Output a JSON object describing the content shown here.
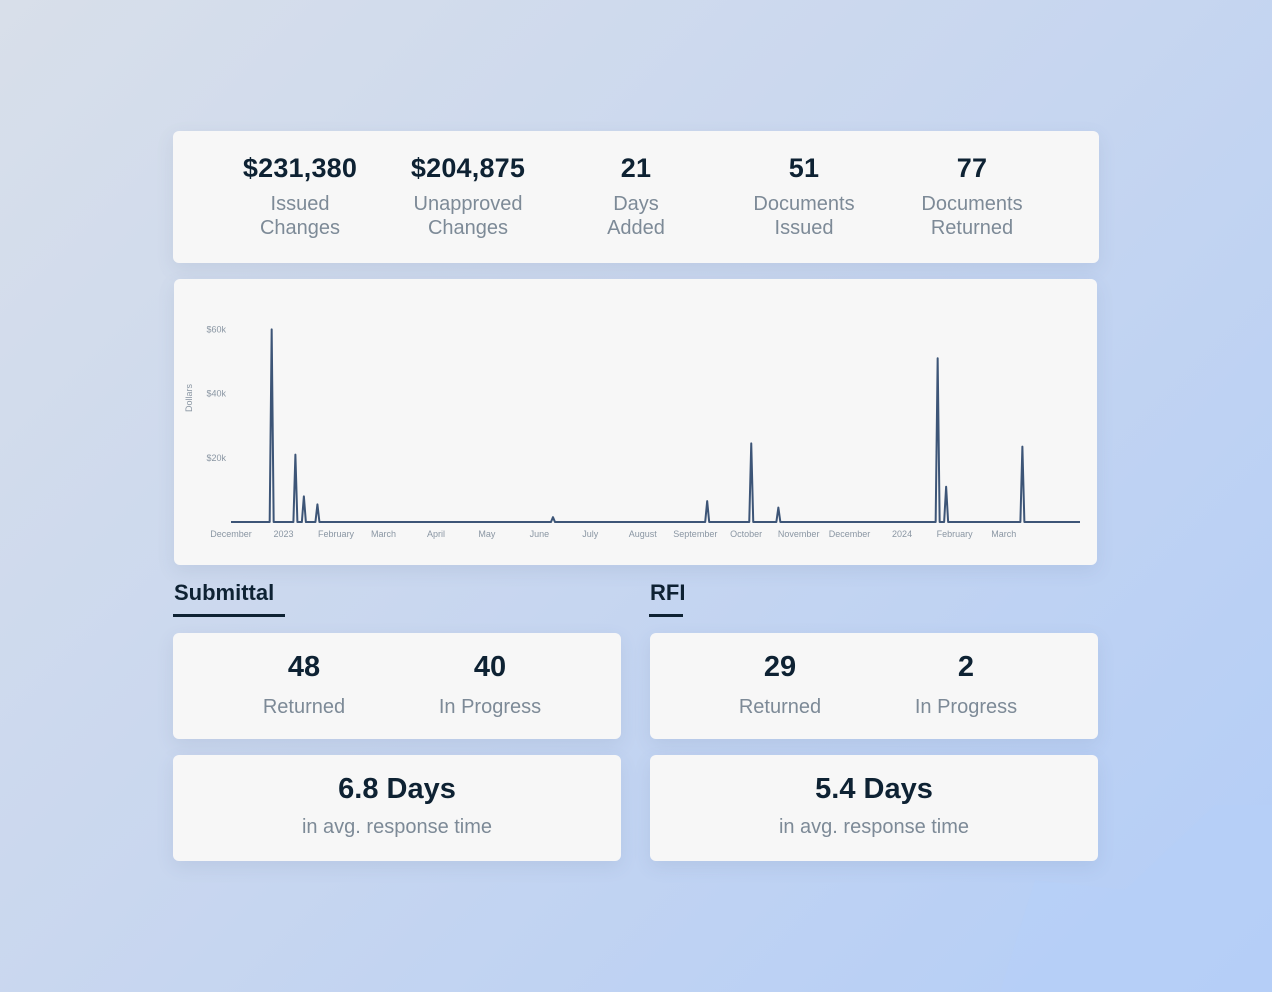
{
  "kpis": [
    {
      "value": "$231,380",
      "label": "Issued\nChanges"
    },
    {
      "value": "$204,875",
      "label": "Unapproved\nChanges"
    },
    {
      "value": "21",
      "label": "Days\nAdded"
    },
    {
      "value": "51",
      "label": "Documents\nIssued"
    },
    {
      "value": "77",
      "label": "Documents\nReturned"
    }
  ],
  "chart_data": {
    "type": "line",
    "ylabel": "Dollars",
    "yticks": [
      "$20k",
      "$40k",
      "$60k"
    ],
    "ylim": [
      0,
      62000
    ],
    "xlabels": [
      "December",
      "2023",
      "February",
      "March",
      "April",
      "May",
      "June",
      "July",
      "August",
      "September",
      "October",
      "November",
      "December",
      "2024",
      "February",
      "March"
    ],
    "xrange": [
      "2022-12-01",
      "2024-04-15"
    ],
    "spikes": [
      {
        "date": "2022-12-25",
        "value": 60000
      },
      {
        "date": "2023-01-08",
        "value": 21000
      },
      {
        "date": "2023-01-13",
        "value": 8000
      },
      {
        "date": "2023-01-21",
        "value": 5500
      },
      {
        "date": "2023-06-09",
        "value": 1500
      },
      {
        "date": "2023-09-08",
        "value": 6500
      },
      {
        "date": "2023-10-04",
        "value": 24500
      },
      {
        "date": "2023-10-20",
        "value": 4500
      },
      {
        "date": "2024-01-22",
        "value": 51000
      },
      {
        "date": "2024-01-27",
        "value": 11000
      },
      {
        "date": "2024-03-12",
        "value": 23500
      }
    ],
    "line_color": "#3d5577",
    "grid": false
  },
  "submittal": {
    "tab_label": "Submittal",
    "returned_value": "48",
    "returned_label": "Returned",
    "in_progress_value": "40",
    "in_progress_label": "In Progress",
    "response_value": "6.8 Days",
    "response_label": "in avg. response time"
  },
  "rfi": {
    "tab_label": "RFI",
    "returned_value": "29",
    "returned_label": "Returned",
    "in_progress_value": "2",
    "in_progress_label": "In Progress",
    "response_value": "5.4 Days",
    "response_label": "in avg. response time"
  }
}
